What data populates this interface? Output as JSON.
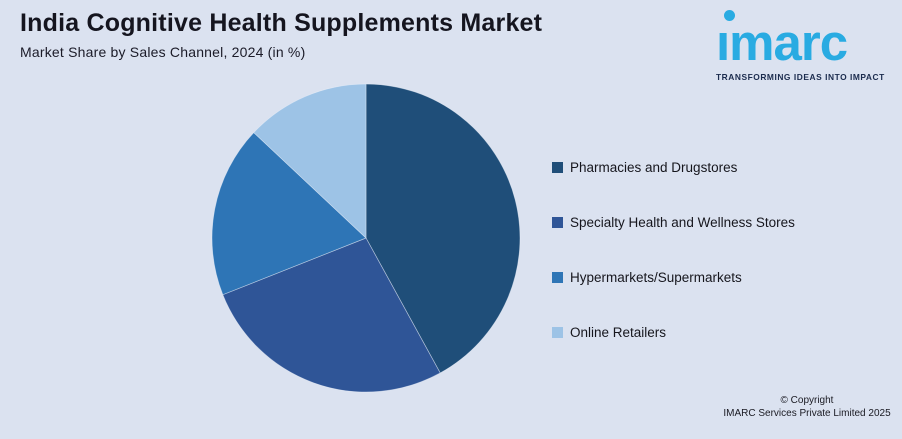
{
  "header": {
    "title": "India Cognitive Health Supplements Market",
    "subtitle": "Market Share by Sales Channel, 2024 (in %)"
  },
  "logo": {
    "brand": "imarc",
    "brand_display": "ımarc",
    "tagline": "TRANSFORMING IDEAS INTO IMPACT",
    "brand_color": "#29abe2",
    "tagline_color": "#1b2b4d"
  },
  "chart_data": {
    "type": "pie",
    "title": "India Cognitive Health Supplements Market",
    "subtitle": "Market Share by Sales Channel, 2024 (in %)",
    "unit": "%",
    "start_angle_deg": 0,
    "direction": "clockwise",
    "legend_position": "right",
    "slices": [
      {
        "label": "Pharmacies and Drugstores",
        "value": 42,
        "color": "#1f4e79"
      },
      {
        "label": "Specialty Health and Wellness Stores",
        "value": 27,
        "color": "#2f5597"
      },
      {
        "label": "Hypermarkets/Supermarkets",
        "value": 18,
        "color": "#2e75b6"
      },
      {
        "label": "Online Retailers",
        "value": 13,
        "color": "#9dc3e6"
      }
    ]
  },
  "footer": {
    "copyright_line1": "© Copyright",
    "copyright_line2": "IMARC Services Private Limited 2025"
  },
  "colors": {
    "background": "#dbe2f0",
    "text": "#15151f"
  }
}
